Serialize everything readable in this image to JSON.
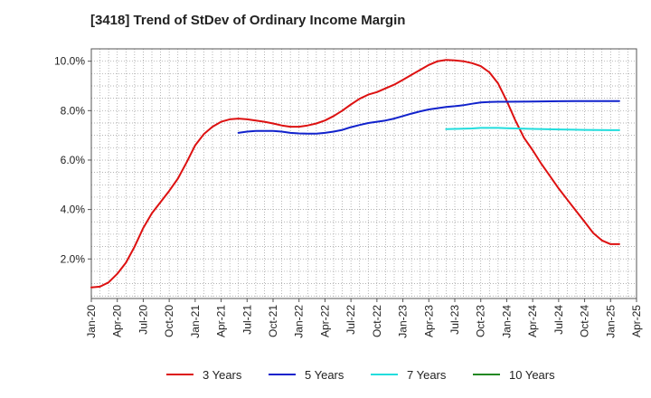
{
  "chart_data": {
    "type": "line",
    "title": "[3418]  Trend of StDev of Ordinary Income Margin",
    "xlabel": "",
    "ylabel": "",
    "x_ticks": [
      "Jan-20",
      "Apr-20",
      "Jul-20",
      "Oct-20",
      "Jan-21",
      "Apr-21",
      "Jul-21",
      "Oct-21",
      "Jan-22",
      "Apr-22",
      "Jul-22",
      "Oct-22",
      "Jan-23",
      "Apr-23",
      "Jul-23",
      "Oct-23",
      "Jan-24",
      "Apr-24",
      "Jul-24",
      "Oct-24",
      "Jan-25",
      "Apr-25"
    ],
    "y_ticks": [
      {
        "value": 2,
        "label": "2.0%"
      },
      {
        "value": 4,
        "label": "4.0%"
      },
      {
        "value": 6,
        "label": "6.0%"
      },
      {
        "value": 8,
        "label": "8.0%"
      },
      {
        "value": 10,
        "label": "10.0%"
      }
    ],
    "ylim": [
      0.4,
      10.5
    ],
    "x_range": [
      "Jan-20",
      "Apr-25"
    ],
    "grid": true,
    "legend_position": "bottom",
    "series": [
      {
        "name": "3 Years",
        "color": "#dd1111",
        "points": [
          [
            "Jan-20",
            0.85
          ],
          [
            "Feb-20",
            0.88
          ],
          [
            "Mar-20",
            1.05
          ],
          [
            "Apr-20",
            1.4
          ],
          [
            "May-20",
            1.85
          ],
          [
            "Jun-20",
            2.5
          ],
          [
            "Jul-20",
            3.25
          ],
          [
            "Aug-20",
            3.85
          ],
          [
            "Sep-20",
            4.3
          ],
          [
            "Oct-20",
            4.75
          ],
          [
            "Nov-20",
            5.25
          ],
          [
            "Dec-20",
            5.9
          ],
          [
            "Jan-21",
            6.6
          ],
          [
            "Feb-21",
            7.05
          ],
          [
            "Mar-21",
            7.35
          ],
          [
            "Apr-21",
            7.55
          ],
          [
            "May-21",
            7.65
          ],
          [
            "Jun-21",
            7.68
          ],
          [
            "Jul-21",
            7.65
          ],
          [
            "Aug-21",
            7.6
          ],
          [
            "Sep-21",
            7.55
          ],
          [
            "Oct-21",
            7.48
          ],
          [
            "Nov-21",
            7.4
          ],
          [
            "Dec-21",
            7.35
          ],
          [
            "Jan-22",
            7.35
          ],
          [
            "Feb-22",
            7.4
          ],
          [
            "Mar-22",
            7.48
          ],
          [
            "Apr-22",
            7.6
          ],
          [
            "May-22",
            7.78
          ],
          [
            "Jun-22",
            8.0
          ],
          [
            "Jul-22",
            8.25
          ],
          [
            "Aug-22",
            8.48
          ],
          [
            "Sep-22",
            8.65
          ],
          [
            "Oct-22",
            8.75
          ],
          [
            "Nov-22",
            8.9
          ],
          [
            "Dec-22",
            9.05
          ],
          [
            "Jan-23",
            9.25
          ],
          [
            "Feb-23",
            9.45
          ],
          [
            "Mar-23",
            9.65
          ],
          [
            "Apr-23",
            9.85
          ],
          [
            "May-23",
            10.0
          ],
          [
            "Jun-23",
            10.05
          ],
          [
            "Jul-23",
            10.03
          ],
          [
            "Aug-23",
            10.0
          ],
          [
            "Sep-23",
            9.92
          ],
          [
            "Oct-23",
            9.8
          ],
          [
            "Nov-23",
            9.55
          ],
          [
            "Dec-23",
            9.1
          ],
          [
            "Jan-24",
            8.4
          ],
          [
            "Feb-24",
            7.6
          ],
          [
            "Mar-24",
            6.9
          ],
          [
            "Apr-24",
            6.4
          ],
          [
            "May-24",
            5.85
          ],
          [
            "Jun-24",
            5.35
          ],
          [
            "Jul-24",
            4.85
          ],
          [
            "Aug-24",
            4.4
          ],
          [
            "Sep-24",
            3.95
          ],
          [
            "Oct-24",
            3.5
          ],
          [
            "Nov-24",
            3.05
          ],
          [
            "Dec-24",
            2.75
          ],
          [
            "Jan-25",
            2.6
          ],
          [
            "Feb-25",
            2.6
          ]
        ]
      },
      {
        "name": "5 Years",
        "color": "#1122cc",
        "points": [
          [
            "Jun-21",
            7.1
          ],
          [
            "Jul-21",
            7.15
          ],
          [
            "Aug-21",
            7.18
          ],
          [
            "Sep-21",
            7.18
          ],
          [
            "Oct-21",
            7.18
          ],
          [
            "Nov-21",
            7.15
          ],
          [
            "Dec-21",
            7.1
          ],
          [
            "Jan-22",
            7.08
          ],
          [
            "Feb-22",
            7.07
          ],
          [
            "Mar-22",
            7.07
          ],
          [
            "Apr-22",
            7.1
          ],
          [
            "May-22",
            7.15
          ],
          [
            "Jun-22",
            7.22
          ],
          [
            "Jul-22",
            7.33
          ],
          [
            "Aug-22",
            7.42
          ],
          [
            "Sep-22",
            7.5
          ],
          [
            "Oct-22",
            7.55
          ],
          [
            "Nov-22",
            7.6
          ],
          [
            "Dec-22",
            7.68
          ],
          [
            "Jan-23",
            7.78
          ],
          [
            "Feb-23",
            7.88
          ],
          [
            "Mar-23",
            7.97
          ],
          [
            "Apr-23",
            8.05
          ],
          [
            "May-23",
            8.1
          ],
          [
            "Jun-23",
            8.15
          ],
          [
            "Jul-23",
            8.18
          ],
          [
            "Aug-23",
            8.22
          ],
          [
            "Sep-23",
            8.28
          ],
          [
            "Oct-23",
            8.33
          ],
          [
            "Nov-23",
            8.35
          ],
          [
            "Dec-23",
            8.36
          ],
          [
            "Jan-24",
            8.36
          ],
          [
            "Apr-24",
            8.37
          ],
          [
            "Jul-24",
            8.38
          ],
          [
            "Oct-24",
            8.39
          ],
          [
            "Jan-25",
            8.39
          ],
          [
            "Feb-25",
            8.39
          ]
        ]
      },
      {
        "name": "7 Years",
        "color": "#22dddd",
        "points": [
          [
            "Jun-23",
            7.25
          ],
          [
            "Jul-23",
            7.26
          ],
          [
            "Aug-23",
            7.27
          ],
          [
            "Sep-23",
            7.28
          ],
          [
            "Oct-23",
            7.3
          ],
          [
            "Nov-23",
            7.3
          ],
          [
            "Dec-23",
            7.3
          ],
          [
            "Jan-24",
            7.29
          ],
          [
            "Apr-24",
            7.26
          ],
          [
            "Jul-24",
            7.24
          ],
          [
            "Oct-24",
            7.22
          ],
          [
            "Jan-25",
            7.21
          ],
          [
            "Feb-25",
            7.21
          ]
        ]
      },
      {
        "name": "10 Years",
        "color": "#228822",
        "points": []
      }
    ]
  }
}
